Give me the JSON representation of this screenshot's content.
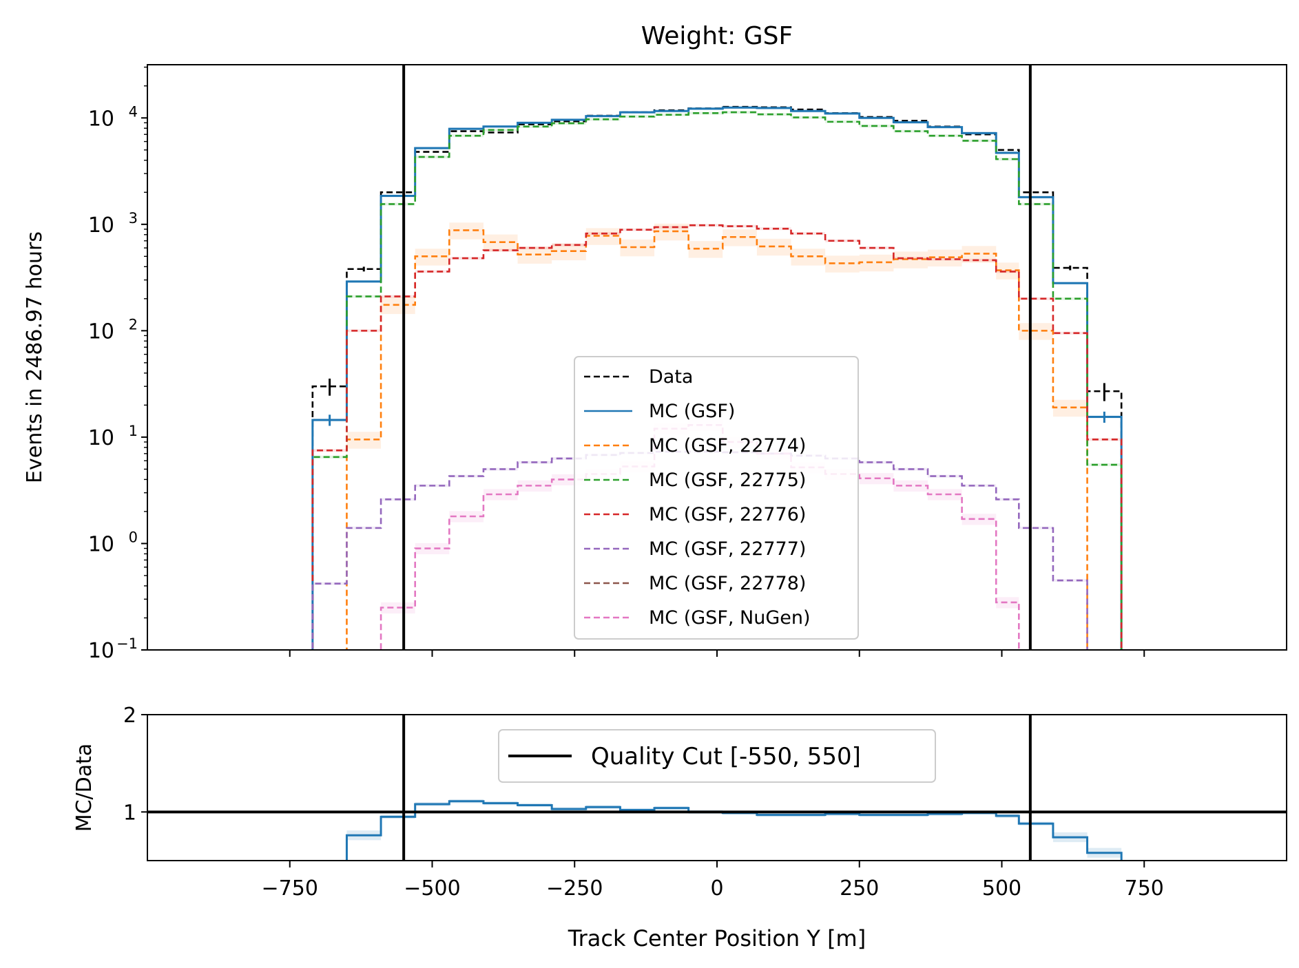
{
  "chart_data": [
    {
      "type": "line",
      "title": "Weight: GSF",
      "xlabel": "",
      "ylabel": "Events in 2486.97 hours",
      "y_scale": "log",
      "xlim": [
        -1000,
        1000
      ],
      "ylim": [
        0.1,
        31623
      ],
      "x_ticks": [
        -750,
        -500,
        -250,
        0,
        250,
        500,
        750
      ],
      "y_ticks": [
        0.1,
        1,
        10,
        100,
        1000,
        10000
      ],
      "y_tick_labels": [
        {
          "base": "10",
          "exp": "−1"
        },
        {
          "base": "10",
          "exp": "0"
        },
        {
          "base": "10",
          "exp": "1"
        },
        {
          "base": "10",
          "exp": "2"
        },
        {
          "base": "10",
          "exp": "3"
        },
        {
          "base": "10",
          "exp": "4"
        }
      ],
      "bin_edges": [
        -710,
        -650,
        -590,
        -530,
        -470,
        -410,
        -350,
        -290,
        -230,
        -170,
        -110,
        -50,
        10,
        70,
        130,
        190,
        250,
        310,
        370,
        430,
        490,
        530,
        590,
        650,
        710
      ],
      "vlines": [
        -550,
        550
      ],
      "legend_placement": "lower-center",
      "series": [
        {
          "name": "Data",
          "color": "#000000",
          "dash": true,
          "values": [
            30,
            380,
            2000,
            4800,
            7500,
            7300,
            8700,
            9300,
            10500,
            11300,
            11800,
            12300,
            12700,
            12600,
            12000,
            11100,
            10200,
            9400,
            8300,
            7000,
            5000,
            2000,
            390,
            27
          ]
        },
        {
          "name": "MC (GSF)",
          "color": "#1f77b4",
          "dash": false,
          "values": [
            14.5,
            290,
            1850,
            5200,
            7900,
            8300,
            9000,
            9600,
            10400,
            11300,
            11600,
            12200,
            12500,
            12400,
            11600,
            11000,
            10000,
            9100,
            8200,
            7200,
            4700,
            1800,
            280,
            15.5
          ]
        },
        {
          "name": "MC (GSF, 22774)",
          "color": "#ff7f0e",
          "dash": true,
          "values": [
            null,
            9.5,
            175,
            500,
            880,
            680,
            520,
            560,
            780,
            610,
            860,
            590,
            760,
            620,
            500,
            430,
            440,
            470,
            490,
            530,
            370,
            100,
            19,
            null
          ]
        },
        {
          "name": "MC (GSF, 22775)",
          "color": "#2ca02c",
          "dash": true,
          "values": [
            6.5,
            210,
            1550,
            4300,
            6800,
            7700,
            8300,
            8900,
            9700,
            10300,
            10700,
            11100,
            11300,
            10800,
            10100,
            9200,
            8400,
            7500,
            6800,
            6100,
            4100,
            1550,
            200,
            5.5
          ]
        },
        {
          "name": "MC (GSF, 22776)",
          "color": "#d62728",
          "dash": true,
          "values": [
            7.5,
            100,
            210,
            360,
            480,
            570,
            600,
            640,
            820,
            890,
            940,
            980,
            960,
            910,
            820,
            700,
            600,
            480,
            470,
            460,
            360,
            200,
            95,
            9.5
          ]
        },
        {
          "name": "MC (GSF, 22777)",
          "color": "#9467bd",
          "dash": true,
          "values": [
            0.42,
            1.4,
            2.6,
            3.5,
            4.3,
            5.0,
            5.8,
            6.3,
            6.8,
            7.1,
            7.3,
            7.3,
            7.2,
            7.0,
            6.7,
            6.3,
            5.8,
            5.0,
            4.3,
            3.5,
            2.6,
            1.4,
            0.45,
            null
          ]
        },
        {
          "name": "MC (GSF, 22778)",
          "color": "#8c564b",
          "dash": true,
          "values": [
            null,
            null,
            null,
            null,
            null,
            null,
            null,
            null,
            null,
            null,
            null,
            null,
            null,
            null,
            null,
            null,
            null,
            null,
            null,
            null,
            null,
            null,
            null,
            null
          ]
        },
        {
          "name": "MC (GSF, NuGen)",
          "color": "#e377c2",
          "dash": true,
          "values": [
            null,
            null,
            0.25,
            0.9,
            1.8,
            2.9,
            3.5,
            4.0,
            4.5,
            5.3,
            12.0,
            13.0,
            9.0,
            7.0,
            5.2,
            4.5,
            4.1,
            3.5,
            2.9,
            1.7,
            0.28,
            null,
            null,
            null
          ]
        }
      ]
    },
    {
      "type": "line",
      "title": "",
      "xlabel": "Track Center Position Y [m]",
      "ylabel": "MC/Data",
      "xlim": [
        -1000,
        1000
      ],
      "ylim": [
        0.5,
        2
      ],
      "x_ticks": [
        -750,
        -500,
        -250,
        0,
        250,
        500,
        750
      ],
      "x_tick_labels": [
        "−750",
        "−500",
        "−250",
        "0",
        "250",
        "500",
        "750"
      ],
      "y_ticks": [
        1,
        2
      ],
      "y_tick_labels": [
        "1",
        "2"
      ],
      "hline": 1,
      "vlines": [
        -550,
        550
      ],
      "legend_placement": "upper-center",
      "legend_label": "Quality Cut [-550, 550]",
      "series": [
        {
          "name": "",
          "color": "#1f77b4",
          "values": [
            null,
            0.76,
            0.95,
            1.08,
            1.11,
            1.09,
            1.07,
            1.03,
            1.05,
            1.02,
            1.04,
            1.0,
            0.99,
            0.97,
            0.97,
            0.98,
            0.97,
            0.97,
            0.98,
            0.99,
            0.96,
            0.88,
            0.74,
            0.58
          ]
        }
      ]
    }
  ]
}
